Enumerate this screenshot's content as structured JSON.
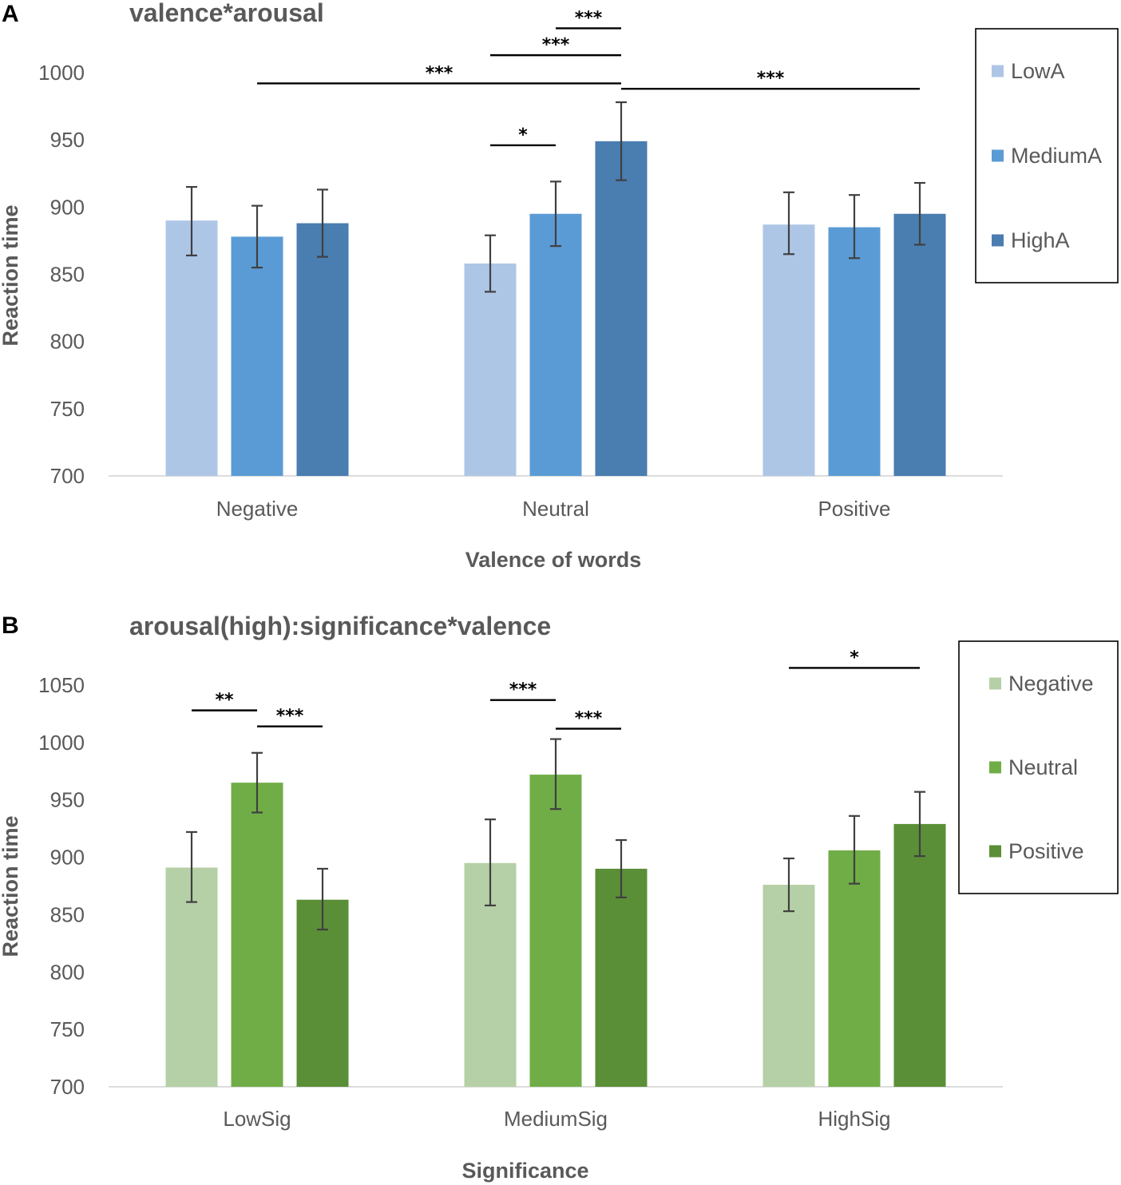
{
  "chart_data": [
    {
      "panel": "A",
      "type": "bar",
      "title": "valence*arousal",
      "xlabel": "Valence of words",
      "ylabel": "Reaction time",
      "ylim": [
        700,
        1000
      ],
      "yticks": [
        700,
        750,
        800,
        850,
        900,
        950,
        1000
      ],
      "categories": [
        "Negative",
        "Neutral",
        "Positive"
      ],
      "series": [
        {
          "name": "LowA",
          "color": "#aec6e6",
          "values": [
            890,
            858,
            887
          ],
          "err_low": [
            864,
            837,
            865
          ],
          "err_high": [
            915,
            879,
            911
          ]
        },
        {
          "name": "MediumA",
          "color": "#5b9bd5",
          "values": [
            878,
            895,
            885
          ],
          "err_low": [
            855,
            871,
            862
          ],
          "err_high": [
            901,
            919,
            909
          ]
        },
        {
          "name": "HighA",
          "color": "#4a7db0",
          "values": [
            888,
            949,
            895
          ],
          "err_low": [
            863,
            920,
            872
          ],
          "err_high": [
            913,
            978,
            918
          ]
        }
      ],
      "significance": [
        {
          "label": "***",
          "from": [
            1,
            1
          ],
          "to": [
            1,
            2
          ],
          "level": 1033
        },
        {
          "label": "***",
          "from": [
            1,
            0
          ],
          "to": [
            1,
            2
          ],
          "level": 1013
        },
        {
          "label": "***",
          "from": [
            0,
            1
          ],
          "to": [
            1,
            2
          ],
          "level": 992
        },
        {
          "label": "***",
          "from": [
            1,
            2
          ],
          "to": [
            2,
            2
          ],
          "level": 988
        },
        {
          "label": "*",
          "from": [
            1,
            0
          ],
          "to": [
            1,
            1
          ],
          "level": 946
        }
      ]
    },
    {
      "panel": "B",
      "type": "bar",
      "title": "arousal(high):significance*valence",
      "xlabel": "Significance",
      "ylabel": "Reaction time",
      "ylim": [
        700,
        1050
      ],
      "yticks": [
        700,
        750,
        800,
        850,
        900,
        950,
        1000,
        1050
      ],
      "categories": [
        "LowSig",
        "MediumSig",
        "HighSig"
      ],
      "series": [
        {
          "name": "Negative",
          "color": "#b5d0a6",
          "values": [
            891,
            895,
            876
          ],
          "err_low": [
            861,
            858,
            853
          ],
          "err_high": [
            922,
            933,
            899
          ]
        },
        {
          "name": "Neutral",
          "color": "#70ad47",
          "values": [
            965,
            972,
            906
          ],
          "err_low": [
            939,
            942,
            877
          ],
          "err_high": [
            991,
            1003,
            936
          ]
        },
        {
          "name": "Positive",
          "color": "#5b8f37",
          "values": [
            863,
            890,
            929
          ],
          "err_low": [
            837,
            865,
            901
          ],
          "err_high": [
            890,
            915,
            957
          ]
        }
      ],
      "significance": [
        {
          "label": "**",
          "from": [
            0,
            0
          ],
          "to": [
            0,
            1
          ],
          "level": 1028
        },
        {
          "label": "***",
          "from": [
            0,
            1
          ],
          "to": [
            0,
            2
          ],
          "level": 1014
        },
        {
          "label": "***",
          "from": [
            1,
            0
          ],
          "to": [
            1,
            1
          ],
          "level": 1037
        },
        {
          "label": "***",
          "from": [
            1,
            1
          ],
          "to": [
            1,
            2
          ],
          "level": 1012
        },
        {
          "label": "*",
          "from": [
            2,
            0
          ],
          "to": [
            2,
            2
          ],
          "level": 1065
        }
      ]
    }
  ]
}
